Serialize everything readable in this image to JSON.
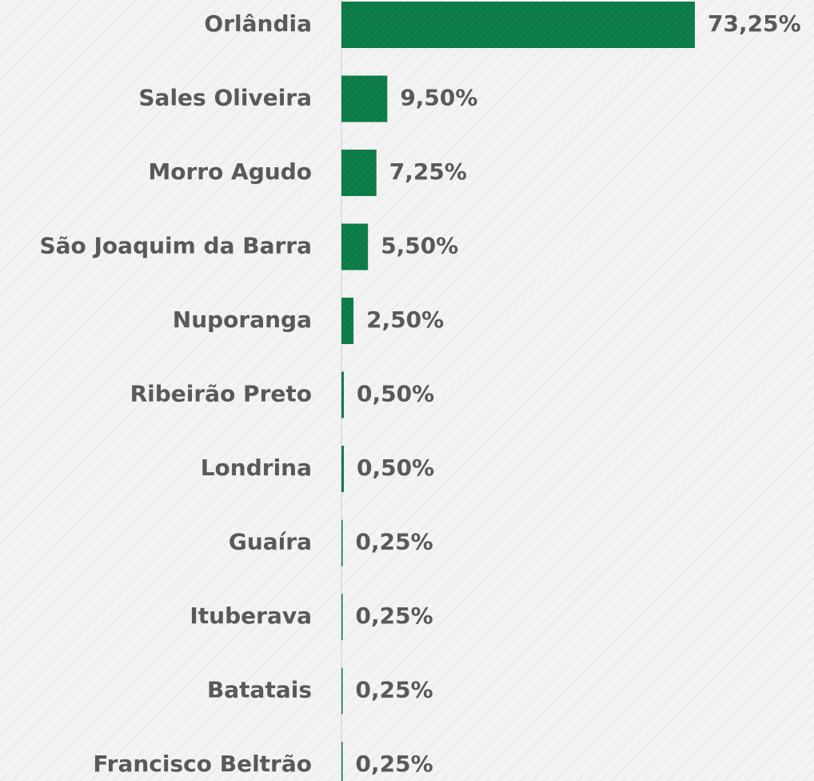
{
  "chart_data": {
    "type": "bar",
    "orientation": "horizontal",
    "color": "#0b7a45",
    "categories": [
      "Orlândia",
      "Sales Oliveira",
      "Morro Agudo",
      "São Joaquim da Barra",
      "Nuporanga",
      "Ribeirão Preto",
      "Londrina",
      "Guaíra",
      "Ituberava",
      "Batatais",
      "Francisco Beltrão"
    ],
    "values": [
      73.25,
      9.5,
      7.25,
      5.5,
      2.5,
      0.5,
      0.5,
      0.25,
      0.25,
      0.25,
      0.25
    ],
    "value_labels": [
      "73,25%",
      "9,50%",
      "7,25%",
      "5,50%",
      "2,50%",
      "0,50%",
      "0,50%",
      "0,25%",
      "0,25%",
      "0,25%",
      "0,25%"
    ]
  }
}
